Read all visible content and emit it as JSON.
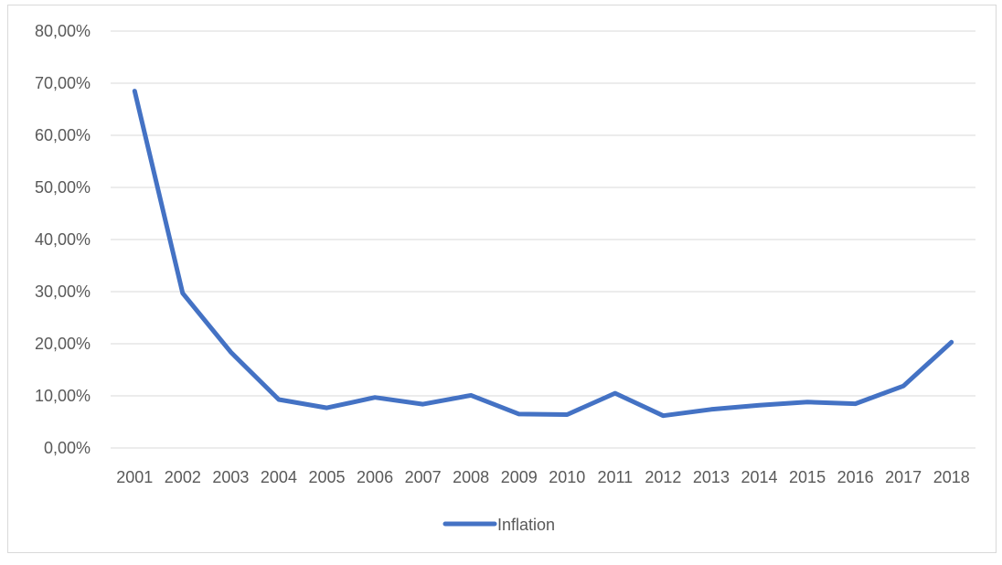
{
  "chart_data": {
    "type": "line",
    "categories": [
      "2001",
      "2002",
      "2003",
      "2004",
      "2005",
      "2006",
      "2007",
      "2008",
      "2009",
      "2010",
      "2011",
      "2012",
      "2013",
      "2014",
      "2015",
      "2016",
      "2017",
      "2018"
    ],
    "series": [
      {
        "name": "Inflation",
        "values": [
          68.5,
          29.7,
          18.4,
          9.3,
          7.7,
          9.7,
          8.4,
          10.1,
          6.5,
          6.4,
          10.5,
          6.2,
          7.4,
          8.2,
          8.8,
          8.5,
          11.9,
          20.3
        ],
        "color": "#4472C4"
      }
    ],
    "ylim": [
      0,
      80
    ],
    "yticks": [
      "0,00%",
      "10,00%",
      "20,00%",
      "30,00%",
      "40,00%",
      "50,00%",
      "60,00%",
      "70,00%",
      "80,00%"
    ],
    "grid": true,
    "legend_position": "bottom"
  }
}
